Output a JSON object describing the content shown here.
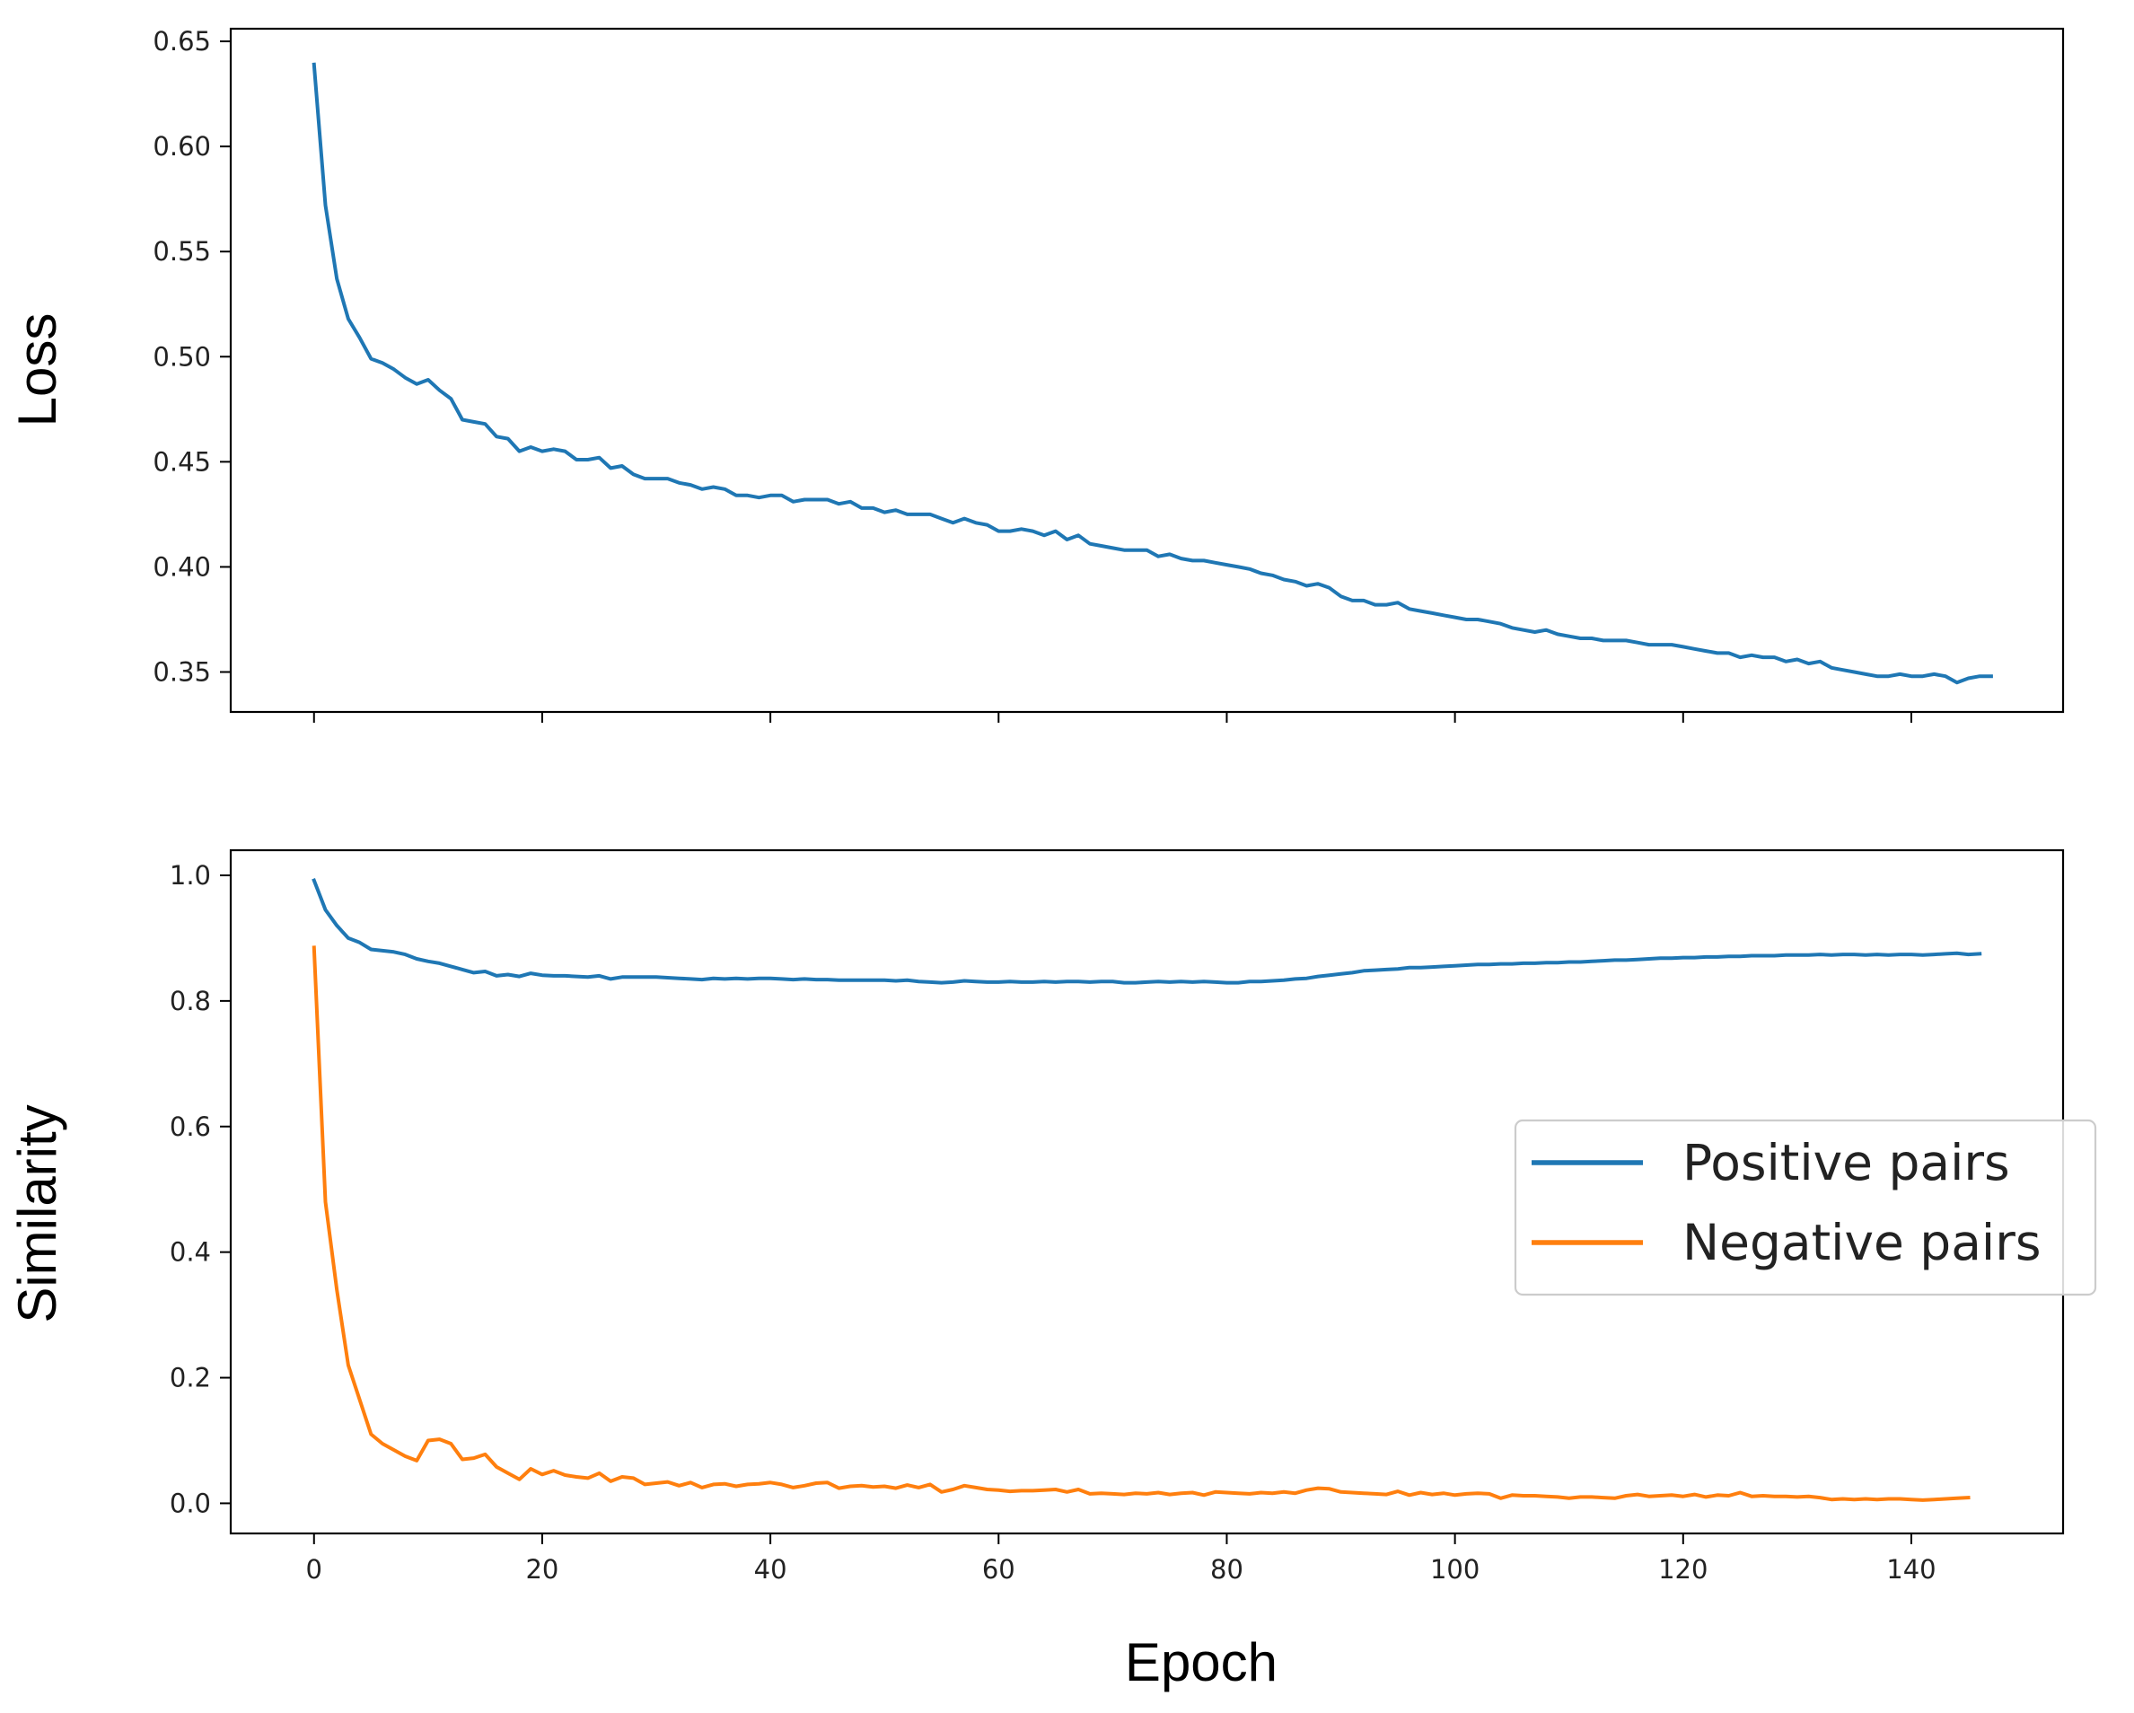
{
  "chart_data": [
    {
      "type": "line",
      "ylabel": "Loss",
      "xlabel": "",
      "xlim": [
        -7.3,
        153.3
      ],
      "ylim": [
        0.331,
        0.656
      ],
      "xticks": [
        0,
        20,
        40,
        60,
        80,
        100,
        120,
        140
      ],
      "xtick_labels_visible": false,
      "yticks": [
        0.35,
        0.4,
        0.45,
        0.5,
        0.55,
        0.6,
        0.65
      ],
      "ytick_labels": [
        "0.35",
        "0.40",
        "0.45",
        "0.50",
        "0.55",
        "0.60",
        "0.65"
      ],
      "legend": null,
      "series": [
        {
          "name": "Loss",
          "color": "#1f77b4",
          "x_start": 0,
          "values": [
            0.639,
            0.572,
            0.537,
            0.518,
            0.509,
            0.499,
            0.497,
            0.494,
            0.49,
            0.487,
            0.489,
            0.484,
            0.48,
            0.47,
            0.469,
            0.468,
            0.462,
            0.461,
            0.455,
            0.457,
            0.455,
            0.456,
            0.455,
            0.451,
            0.451,
            0.452,
            0.447,
            0.448,
            0.444,
            0.442,
            0.442,
            0.442,
            0.44,
            0.439,
            0.437,
            0.438,
            0.437,
            0.434,
            0.434,
            0.433,
            0.434,
            0.434,
            0.431,
            0.432,
            0.432,
            0.432,
            0.43,
            0.431,
            0.428,
            0.428,
            0.426,
            0.427,
            0.425,
            0.425,
            0.425,
            0.423,
            0.421,
            0.423,
            0.421,
            0.42,
            0.417,
            0.417,
            0.418,
            0.417,
            0.415,
            0.417,
            0.413,
            0.415,
            0.411,
            0.41,
            0.409,
            0.408,
            0.408,
            0.408,
            0.405,
            0.406,
            0.404,
            0.403,
            0.403,
            0.402,
            0.401,
            0.4,
            0.399,
            0.397,
            0.396,
            0.394,
            0.393,
            0.391,
            0.392,
            0.39,
            0.386,
            0.384,
            0.384,
            0.382,
            0.382,
            0.383,
            0.38,
            0.379,
            0.378,
            0.377,
            0.376,
            0.375,
            0.375,
            0.374,
            0.373,
            0.371,
            0.37,
            0.369,
            0.37,
            0.368,
            0.367,
            0.366,
            0.366,
            0.365,
            0.365,
            0.365,
            0.364,
            0.363,
            0.363,
            0.363,
            0.362,
            0.361,
            0.36,
            0.359,
            0.359,
            0.357,
            0.358,
            0.357,
            0.357,
            0.355,
            0.356,
            0.354,
            0.355,
            0.352,
            0.351,
            0.35,
            0.349,
            0.348,
            0.348,
            0.349,
            0.348,
            0.348,
            0.349,
            0.348,
            0.345,
            0.347,
            0.348,
            0.348
          ]
        }
      ]
    },
    {
      "type": "line",
      "ylabel": "Similarity",
      "xlabel": "Epoch",
      "xlim": [
        -7.3,
        153.3
      ],
      "ylim": [
        -0.048,
        1.04
      ],
      "xticks": [
        0,
        20,
        40,
        60,
        80,
        100,
        120,
        140
      ],
      "xtick_labels": [
        "0",
        "20",
        "40",
        "60",
        "80",
        "100",
        "120",
        "140"
      ],
      "yticks": [
        0.0,
        0.2,
        0.4,
        0.6,
        0.8,
        1.0
      ],
      "ytick_labels": [
        "0.0",
        "0.2",
        "0.4",
        "0.6",
        "0.8",
        "1.0"
      ],
      "legend": {
        "position": "center-right",
        "entries": [
          "Positive pairs",
          "Negative pairs"
        ]
      },
      "series": [
        {
          "name": "Positive pairs",
          "color": "#1f77b4",
          "x_start": 0,
          "values": [
            0.992,
            0.945,
            0.92,
            0.9,
            0.893,
            0.882,
            0.88,
            0.878,
            0.874,
            0.867,
            0.863,
            0.86,
            0.855,
            0.85,
            0.845,
            0.847,
            0.84,
            0.842,
            0.839,
            0.844,
            0.841,
            0.84,
            0.84,
            0.839,
            0.838,
            0.84,
            0.835,
            0.838,
            0.838,
            0.838,
            0.838,
            0.837,
            0.836,
            0.835,
            0.834,
            0.836,
            0.835,
            0.836,
            0.835,
            0.836,
            0.836,
            0.835,
            0.834,
            0.835,
            0.834,
            0.834,
            0.833,
            0.833,
            0.833,
            0.833,
            0.833,
            0.832,
            0.833,
            0.831,
            0.83,
            0.829,
            0.83,
            0.832,
            0.831,
            0.83,
            0.83,
            0.831,
            0.83,
            0.83,
            0.831,
            0.83,
            0.831,
            0.831,
            0.83,
            0.831,
            0.831,
            0.829,
            0.829,
            0.83,
            0.831,
            0.83,
            0.831,
            0.83,
            0.831,
            0.83,
            0.829,
            0.829,
            0.831,
            0.831,
            0.832,
            0.833,
            0.835,
            0.836,
            0.839,
            0.841,
            0.843,
            0.845,
            0.848,
            0.849,
            0.85,
            0.851,
            0.853,
            0.853,
            0.854,
            0.855,
            0.856,
            0.857,
            0.858,
            0.858,
            0.859,
            0.859,
            0.86,
            0.86,
            0.861,
            0.861,
            0.862,
            0.862,
            0.863,
            0.864,
            0.865,
            0.865,
            0.866,
            0.867,
            0.868,
            0.868,
            0.869,
            0.869,
            0.87,
            0.87,
            0.871,
            0.871,
            0.872,
            0.872,
            0.872,
            0.873,
            0.873,
            0.873,
            0.874,
            0.873,
            0.874,
            0.874,
            0.873,
            0.874,
            0.873,
            0.874,
            0.874,
            0.873,
            0.874,
            0.875,
            0.876,
            0.874,
            0.875
          ]
        },
        {
          "name": "Negative pairs",
          "color": "#ff7f0e",
          "x_start": 0,
          "values": [
            0.885,
            0.48,
            0.34,
            0.22,
            0.165,
            0.11,
            0.095,
            0.085,
            0.075,
            0.068,
            0.1,
            0.102,
            0.095,
            0.07,
            0.072,
            0.078,
            0.058,
            0.048,
            0.038,
            0.055,
            0.046,
            0.052,
            0.045,
            0.042,
            0.04,
            0.048,
            0.035,
            0.042,
            0.04,
            0.03,
            0.032,
            0.034,
            0.028,
            0.033,
            0.025,
            0.03,
            0.031,
            0.027,
            0.03,
            0.031,
            0.033,
            0.03,
            0.025,
            0.028,
            0.032,
            0.033,
            0.024,
            0.027,
            0.028,
            0.026,
            0.027,
            0.024,
            0.029,
            0.025,
            0.03,
            0.018,
            0.022,
            0.028,
            0.025,
            0.022,
            0.021,
            0.019,
            0.02,
            0.02,
            0.021,
            0.022,
            0.018,
            0.022,
            0.015,
            0.016,
            0.015,
            0.014,
            0.016,
            0.015,
            0.017,
            0.014,
            0.016,
            0.017,
            0.013,
            0.018,
            0.017,
            0.016,
            0.015,
            0.017,
            0.016,
            0.018,
            0.016,
            0.021,
            0.024,
            0.023,
            0.018,
            0.017,
            0.016,
            0.015,
            0.014,
            0.019,
            0.013,
            0.017,
            0.014,
            0.016,
            0.013,
            0.015,
            0.016,
            0.015,
            0.008,
            0.013,
            0.012,
            0.012,
            0.011,
            0.01,
            0.008,
            0.01,
            0.01,
            0.009,
            0.008,
            0.012,
            0.014,
            0.011,
            0.012,
            0.013,
            0.011,
            0.014,
            0.01,
            0.013,
            0.012,
            0.017,
            0.011,
            0.012,
            0.011,
            0.011,
            0.01,
            0.011,
            0.009,
            0.006,
            0.007,
            0.006,
            0.007,
            0.006,
            0.007,
            0.007,
            0.006,
            0.005,
            0.006,
            0.007,
            0.008,
            0.009
          ]
        }
      ]
    }
  ]
}
